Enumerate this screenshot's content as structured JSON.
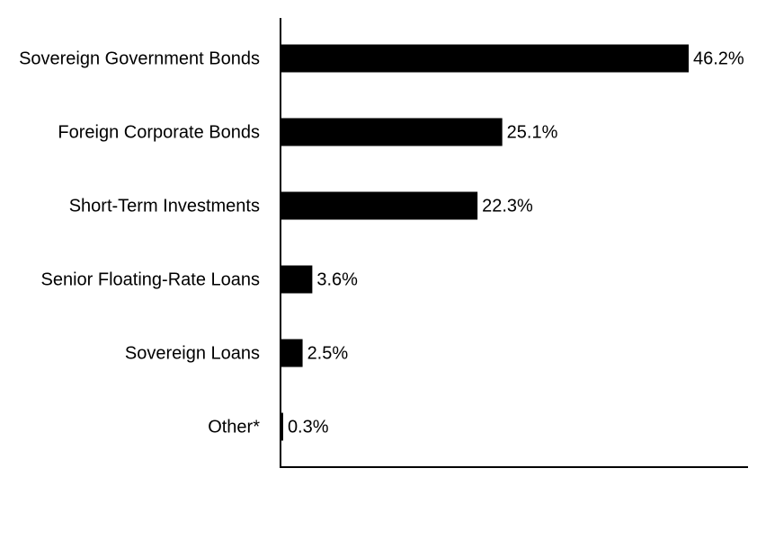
{
  "chart_data": {
    "type": "hbar",
    "categories": [
      "Sovereign Government Bonds",
      "Foreign Corporate Bonds",
      "Short-Term Investments",
      "Senior Floating-Rate Loans",
      "Sovereign Loans",
      "Other*"
    ],
    "values": [
      46.2,
      25.1,
      22.3,
      3.6,
      2.5,
      0.3
    ],
    "value_labels": [
      "46.2%",
      "25.1%",
      "22.3%",
      "3.6%",
      "2.5%",
      "0.3%"
    ],
    "color": "#000000"
  }
}
